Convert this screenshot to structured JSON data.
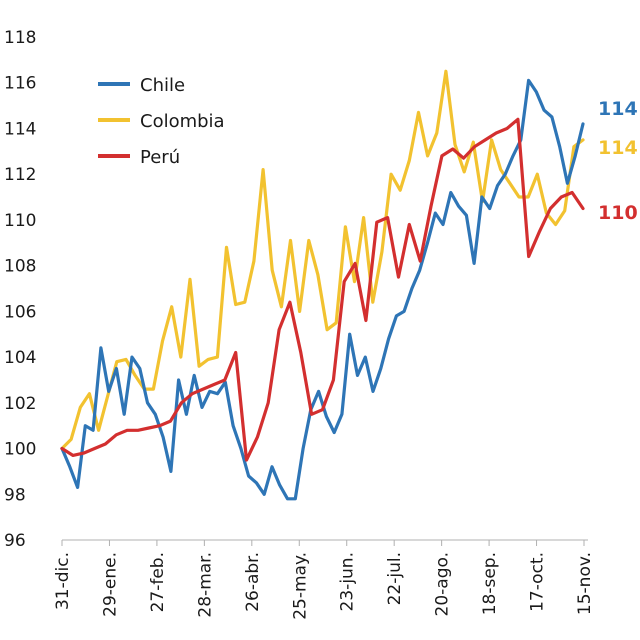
{
  "chart_data": {
    "type": "line",
    "title": "",
    "xlabel": "",
    "ylabel": "",
    "ylim": [
      96,
      118
    ],
    "yticks": [
      96,
      98,
      100,
      102,
      104,
      106,
      108,
      110,
      112,
      114,
      116,
      118
    ],
    "xticks": [
      "31-dic.",
      "29-ene.",
      "27-feb.",
      "28-mar.",
      "26-abr.",
      "25-may.",
      "23-jun.",
      "22-jul.",
      "20-ago.",
      "18-sep.",
      "17-oct.",
      "15-nov."
    ],
    "legend_position": "top-left",
    "grid": false,
    "series": [
      {
        "name": "Chile",
        "color": "#2e75b6",
        "end_label": "114",
        "values": [
          100,
          99.2,
          98.3,
          101.0,
          100.8,
          104.4,
          102.5,
          103.5,
          101.5,
          104.0,
          103.5,
          102.0,
          101.5,
          100.5,
          99.0,
          103.0,
          101.5,
          103.2,
          101.8,
          102.5,
          102.4,
          102.9,
          101.0,
          100.0,
          98.8,
          98.5,
          98.0,
          99.2,
          98.4,
          97.8,
          97.8,
          100.0,
          101.7,
          102.5,
          101.4,
          100.7,
          101.5,
          105.0,
          103.2,
          104.0,
          102.5,
          103.5,
          104.8,
          105.8,
          106.0,
          107.0,
          107.8,
          109.0,
          110.3,
          109.8,
          111.2,
          110.6,
          110.2,
          108.1,
          111.0,
          110.5,
          111.5,
          112.0,
          112.8,
          113.5,
          116.1,
          115.6,
          114.8,
          114.5,
          113.2,
          111.6,
          112.8,
          114.2
        ]
      },
      {
        "name": "Colombia",
        "color": "#f2c230",
        "end_label": "114",
        "values": [
          100,
          100.4,
          101.8,
          102.4,
          100.8,
          102.3,
          103.8,
          103.9,
          103.2,
          102.6,
          102.6,
          104.7,
          106.2,
          104.0,
          107.4,
          103.6,
          103.9,
          104.0,
          108.8,
          106.3,
          106.4,
          108.2,
          112.2,
          107.8,
          106.2,
          109.1,
          106.0,
          109.1,
          107.6,
          105.2,
          105.5,
          109.7,
          107.3,
          110.1,
          106.4,
          108.6,
          112.0,
          111.3,
          112.6,
          114.7,
          112.8,
          113.8,
          116.5,
          113.3,
          112.1,
          113.4,
          110.8,
          113.5,
          112.2,
          111.6,
          111.0,
          111.0,
          112.0,
          110.3,
          109.8,
          110.4,
          113.2,
          113.5
        ]
      },
      {
        "name": "Perú",
        "color": "#d32f2f",
        "end_label": "110",
        "values": [
          100,
          99.7,
          99.8,
          100.0,
          100.2,
          100.6,
          100.8,
          100.8,
          100.9,
          101.0,
          101.2,
          102.0,
          102.4,
          102.6,
          102.8,
          103.0,
          104.2,
          99.5,
          100.5,
          102.0,
          105.2,
          106.4,
          104.2,
          101.5,
          101.7,
          103.0,
          107.3,
          108.1,
          105.6,
          109.9,
          110.1,
          107.5,
          109.8,
          108.2,
          110.6,
          112.8,
          113.1,
          112.7,
          113.2,
          113.5,
          113.8,
          114.0,
          114.4,
          108.4,
          109.5,
          110.5,
          111.0,
          111.2,
          110.5
        ]
      }
    ]
  }
}
